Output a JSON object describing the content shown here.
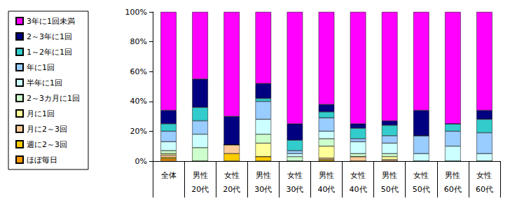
{
  "chart_data": {
    "type": "bar",
    "stacked": true,
    "categories": [
      "全体",
      "男性\n20代",
      "女性\n20代",
      "男性\n30代",
      "女性\n30代",
      "男性\n40代",
      "女性\n40代",
      "男性\n50代",
      "女性\n50代",
      "男性\n60代",
      "女性\n60代"
    ],
    "series": [
      {
        "name": "ほぼ毎日",
        "color": "#FF9900",
        "values": [
          1.5,
          0,
          0,
          0,
          0,
          0,
          0,
          0,
          0,
          0,
          0
        ]
      },
      {
        "name": "週に2～3回",
        "color": "#FFCC00",
        "values": [
          1,
          0,
          5,
          3,
          0,
          1,
          0,
          0,
          0,
          0,
          0
        ]
      },
      {
        "name": "月に2～3回",
        "color": "#FFCC99",
        "values": [
          1.5,
          0,
          6,
          0,
          0,
          1,
          3,
          1,
          0,
          0,
          0
        ]
      },
      {
        "name": "月に1回",
        "color": "#FFFF99",
        "values": [
          1,
          0,
          0,
          9,
          0,
          8,
          0,
          2,
          0,
          0,
          0
        ]
      },
      {
        "name": "2～3カ月に1回",
        "color": "#CCFFCC",
        "values": [
          2,
          9,
          0,
          6,
          3,
          5,
          2,
          2,
          0,
          0,
          0
        ]
      },
      {
        "name": "半年に1回",
        "color": "#CCFFFF",
        "values": [
          6,
          9,
          0,
          10,
          2,
          5,
          8,
          7,
          5,
          10,
          5
        ]
      },
      {
        "name": "年に1回",
        "color": "#99CCFF",
        "values": [
          7,
          9,
          0,
          12,
          2,
          9,
          2,
          5,
          12,
          10,
          14
        ]
      },
      {
        "name": "1～2年に1回",
        "color": "#33CCCC",
        "values": [
          5,
          9,
          0,
          2,
          7,
          4,
          7,
          7,
          0,
          5,
          9
        ]
      },
      {
        "name": "2～3年に1回",
        "color": "#000080",
        "values": [
          9,
          19,
          19,
          10,
          11,
          5,
          3,
          3,
          17,
          0,
          6
        ]
      },
      {
        "name": "3年に1回未満",
        "color": "#FF00FF",
        "values": [
          66,
          45,
          70,
          48,
          75,
          62,
          75,
          73,
          66,
          75,
          66
        ]
      }
    ],
    "ylim": [
      0,
      100
    ],
    "yticks": [
      {
        "value": 0,
        "label": "0%"
      },
      {
        "value": 20,
        "label": "20%"
      },
      {
        "value": 40,
        "label": "40%"
      },
      {
        "value": 60,
        "label": "60%"
      },
      {
        "value": 80,
        "label": "80%"
      },
      {
        "value": 100,
        "label": "100%"
      }
    ],
    "grid": false,
    "legend": "left"
  }
}
